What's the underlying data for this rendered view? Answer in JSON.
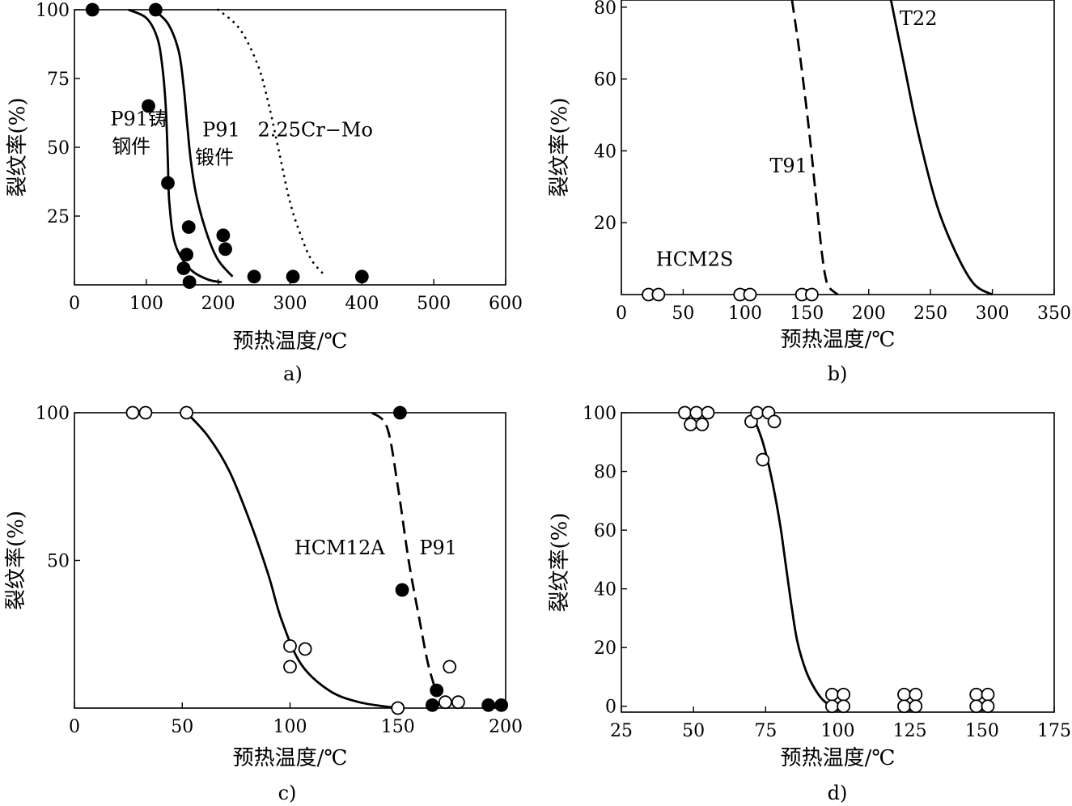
{
  "chart_data": [
    {
      "panel": "a)",
      "type": "scatter",
      "caption": "a)",
      "xlabel": "预热温度/℃",
      "ylabel": "裂纹率(%)",
      "xlim": [
        0,
        600
      ],
      "ylim": [
        0,
        100
      ],
      "xticks": [
        "0",
        "100",
        "200",
        "300",
        "400",
        "500",
        "600"
      ],
      "yticks": [
        "100",
        "75",
        "50",
        "25"
      ],
      "points": [
        {
          "x": 25,
          "y": 100,
          "filled": true
        },
        {
          "x": 113,
          "y": 100,
          "filled": true
        },
        {
          "x": 103,
          "y": 65,
          "filled": true
        },
        {
          "x": 130,
          "y": 37,
          "filled": true
        },
        {
          "x": 159,
          "y": 21,
          "filled": true
        },
        {
          "x": 156,
          "y": 11,
          "filled": true
        },
        {
          "x": 152,
          "y": 6,
          "filled": true
        },
        {
          "x": 160,
          "y": 1,
          "filled": true
        },
        {
          "x": 207,
          "y": 18,
          "filled": true
        },
        {
          "x": 210,
          "y": 13,
          "filled": true
        },
        {
          "x": 250,
          "y": 3,
          "filled": true
        },
        {
          "x": 304,
          "y": 3,
          "filled": true
        },
        {
          "x": 400,
          "y": 3,
          "filled": true
        }
      ],
      "curves": [
        {
          "name": "P91铸钢件",
          "style": "solid",
          "x": [
            75,
            100,
            115,
            122,
            127,
            130,
            132,
            140,
            160,
            185,
            205
          ],
          "y": [
            100,
            97,
            90,
            80,
            65,
            45,
            30,
            15,
            6,
            2,
            1
          ]
        },
        {
          "name": "P91锻件",
          "style": "solid",
          "x": [
            110,
            130,
            145,
            152,
            157,
            162,
            170,
            185,
            200,
            220
          ],
          "y": [
            100,
            95,
            85,
            72,
            58,
            45,
            32,
            18,
            9,
            3
          ]
        },
        {
          "name": "2.25Cr-Mo",
          "style": "dotted",
          "x": [
            200,
            230,
            255,
            270,
            285,
            300,
            315,
            330,
            350
          ],
          "y": [
            100,
            93,
            80,
            66,
            48,
            30,
            18,
            9,
            3
          ]
        }
      ],
      "annotations": [
        {
          "text": "P91铸",
          "x": 50,
          "y": 58
        },
        {
          "text": "钢件",
          "x": 52,
          "y": 48
        },
        {
          "text": "P91",
          "x": 178,
          "y": 54
        },
        {
          "text": "锻件",
          "x": 168,
          "y": 44
        },
        {
          "text": "2.25Cr−Mo",
          "x": 255,
          "y": 54
        }
      ]
    },
    {
      "panel": "b)",
      "type": "line",
      "caption": "b)",
      "xlabel": "预热温度/℃",
      "ylabel": "裂纹率(%)",
      "xlim": [
        0,
        350
      ],
      "ylim": [
        0,
        82
      ],
      "xticks": [
        "0",
        "50",
        "100",
        "150",
        "200",
        "250",
        "300",
        "350"
      ],
      "yticks": [
        "80",
        "60",
        "40",
        "20"
      ],
      "points": [
        {
          "x": 22,
          "y": 0,
          "filled": false
        },
        {
          "x": 30,
          "y": 0,
          "filled": false
        },
        {
          "x": 96,
          "y": 0,
          "filled": false
        },
        {
          "x": 104,
          "y": 0,
          "filled": false
        },
        {
          "x": 146,
          "y": 0,
          "filled": false
        },
        {
          "x": 154,
          "y": 0,
          "filled": false
        }
      ],
      "curves": [
        {
          "name": "T91",
          "style": "dashed",
          "x": [
            138,
            145,
            152,
            158,
            162,
            165,
            168,
            175
          ],
          "y": [
            82,
            65,
            45,
            25,
            12,
            5,
            2,
            0
          ]
        },
        {
          "name": "T22",
          "style": "solid",
          "x": [
            218,
            228,
            240,
            255,
            270,
            285,
            300
          ],
          "y": [
            82,
            65,
            45,
            25,
            12,
            3,
            0
          ]
        }
      ],
      "annotations": [
        {
          "text": "T22",
          "x": 225,
          "y": 75
        },
        {
          "text": "T91",
          "x": 120,
          "y": 34
        },
        {
          "text": "HCM2S",
          "x": 28,
          "y": 8
        }
      ]
    },
    {
      "panel": "c)",
      "type": "line",
      "caption": "c)",
      "xlabel": "预热温度/℃",
      "ylabel": "裂纹率(%)",
      "xlim": [
        0,
        200
      ],
      "ylim": [
        0,
        100
      ],
      "xticks": [
        "0",
        "50",
        "100",
        "150",
        "200"
      ],
      "yticks": [
        "100",
        "50"
      ],
      "points": [
        {
          "x": 27,
          "y": 100,
          "filled": false
        },
        {
          "x": 33,
          "y": 100,
          "filled": false
        },
        {
          "x": 52,
          "y": 100,
          "filled": false
        },
        {
          "x": 100,
          "y": 21,
          "filled": false
        },
        {
          "x": 100,
          "y": 14,
          "filled": false
        },
        {
          "x": 107,
          "y": 20,
          "filled": false
        },
        {
          "x": 150,
          "y": 0,
          "filled": false
        },
        {
          "x": 174,
          "y": 14,
          "filled": false
        },
        {
          "x": 172,
          "y": 2,
          "filled": false
        },
        {
          "x": 178,
          "y": 2,
          "filled": false
        },
        {
          "x": 151,
          "y": 100,
          "filled": true
        },
        {
          "x": 152,
          "y": 40,
          "filled": true
        },
        {
          "x": 168,
          "y": 6,
          "filled": true
        },
        {
          "x": 166,
          "y": 1,
          "filled": true
        },
        {
          "x": 192,
          "y": 1,
          "filled": true
        },
        {
          "x": 198,
          "y": 1,
          "filled": true
        }
      ],
      "curves": [
        {
          "name": "HCM12A",
          "style": "solid",
          "x": [
            52,
            62,
            72,
            82,
            90,
            96,
            105,
            118,
            132,
            150
          ],
          "y": [
            100,
            92,
            80,
            62,
            45,
            30,
            15,
            6,
            2,
            0
          ]
        },
        {
          "name": "P91",
          "style": "dashed",
          "x": [
            138,
            145,
            150,
            155,
            160,
            164,
            168
          ],
          "y": [
            100,
            95,
            75,
            50,
            30,
            15,
            5
          ]
        }
      ],
      "annotations": [
        {
          "text": "HCM12A",
          "x": 102,
          "y": 52
        },
        {
          "text": "P91",
          "x": 160,
          "y": 52
        }
      ]
    },
    {
      "panel": "d)",
      "type": "line",
      "caption": "d)",
      "xlabel": "预热温度/℃",
      "ylabel": "裂纹率(%)",
      "xlim": [
        25,
        175
      ],
      "ylim": [
        -2,
        100
      ],
      "xticks": [
        "25",
        "50",
        "75",
        "100",
        "125",
        "150",
        "175"
      ],
      "yticks": [
        "100",
        "80",
        "60",
        "40",
        "20",
        "0"
      ],
      "points": [
        {
          "x": 47,
          "y": 100,
          "filled": false
        },
        {
          "x": 51,
          "y": 100,
          "filled": false
        },
        {
          "x": 55,
          "y": 100,
          "filled": false
        },
        {
          "x": 49,
          "y": 96,
          "filled": false
        },
        {
          "x": 53,
          "y": 96,
          "filled": false
        },
        {
          "x": 70,
          "y": 97,
          "filled": false
        },
        {
          "x": 72,
          "y": 100,
          "filled": false
        },
        {
          "x": 76,
          "y": 100,
          "filled": false
        },
        {
          "x": 78,
          "y": 97,
          "filled": false
        },
        {
          "x": 74,
          "y": 84,
          "filled": false
        },
        {
          "x": 98,
          "y": 4,
          "filled": false
        },
        {
          "x": 102,
          "y": 4,
          "filled": false
        },
        {
          "x": 98,
          "y": 0,
          "filled": false
        },
        {
          "x": 102,
          "y": 0,
          "filled": false
        },
        {
          "x": 123,
          "y": 4,
          "filled": false
        },
        {
          "x": 127,
          "y": 4,
          "filled": false
        },
        {
          "x": 123,
          "y": 0,
          "filled": false
        },
        {
          "x": 127,
          "y": 0,
          "filled": false
        },
        {
          "x": 148,
          "y": 4,
          "filled": false
        },
        {
          "x": 152,
          "y": 4,
          "filled": false
        },
        {
          "x": 148,
          "y": 0,
          "filled": false
        },
        {
          "x": 152,
          "y": 0,
          "filled": false
        }
      ],
      "curves": [
        {
          "name": "",
          "style": "solid",
          "x": [
            71,
            74,
            77,
            80,
            82,
            84,
            86,
            89,
            92,
            95,
            98
          ],
          "y": [
            98,
            90,
            78,
            62,
            48,
            34,
            22,
            12,
            6,
            2,
            0
          ]
        }
      ],
      "annotations": []
    }
  ]
}
